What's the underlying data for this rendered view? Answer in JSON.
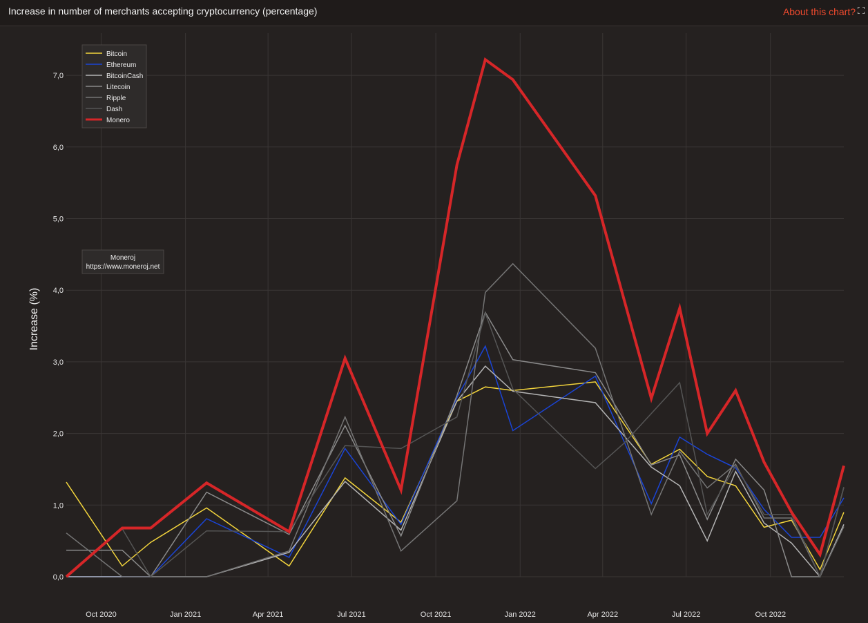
{
  "header": {
    "title": "Increase in number of merchants accepting cryptocurrency (percentage)",
    "about_label": "About this chart?",
    "expand_icon": "expand-icon"
  },
  "watermark": {
    "name": "Moneroj",
    "url": "https://www.moneroj.net"
  },
  "chart_data": {
    "type": "line",
    "ylabel": "Increase (%)",
    "ylim": [
      0,
      7.5
    ],
    "yticks": [
      0,
      1,
      2,
      3,
      4,
      5,
      6,
      7
    ],
    "ytick_labels": [
      "0,0",
      "1,0",
      "2,0",
      "3,0",
      "4,0",
      "5,0",
      "6,0",
      "7,0"
    ],
    "xlim": [
      "2020-08-24",
      "2022-12-20"
    ],
    "xticks": [
      "2020-10-01",
      "2021-01-01",
      "2021-04-01",
      "2021-07-01",
      "2021-10-01",
      "2022-01-01",
      "2022-04-01",
      "2022-07-01",
      "2022-10-01"
    ],
    "xtick_labels": [
      "Oct 2020",
      "Jan 2021",
      "Apr 2021",
      "Jul 2021",
      "Oct 2021",
      "Jan 2022",
      "Apr 2022",
      "Jul 2022",
      "Oct 2022"
    ],
    "grid": true,
    "legend_position": "top-left",
    "x": [
      "2020-08-24",
      "2020-09-24",
      "2020-10-24",
      "2020-11-24",
      "2020-12-24",
      "2021-01-24",
      "2021-02-24",
      "2021-03-24",
      "2021-04-24",
      "2021-05-24",
      "2021-06-24",
      "2021-07-24",
      "2021-08-24",
      "2021-09-24",
      "2021-10-24",
      "2021-11-24",
      "2021-12-24",
      "2022-01-24",
      "2022-02-24",
      "2022-03-24",
      "2022-04-24",
      "2022-05-24",
      "2022-06-24",
      "2022-07-24",
      "2022-08-24",
      "2022-09-24",
      "2022-10-24",
      "2022-11-24",
      "2022-12-20"
    ],
    "series": [
      {
        "name": "Bitcoin",
        "color": "#f2d43c",
        "width": 1.5,
        "values": [
          1.32,
          null,
          0.15,
          0.48,
          null,
          0.96,
          null,
          null,
          0.15,
          null,
          1.38,
          null,
          0.76,
          null,
          2.45,
          2.65,
          2.6,
          null,
          null,
          2.72,
          null,
          1.57,
          1.78,
          1.4,
          1.27,
          0.69,
          0.79,
          0.1,
          0.9
        ]
      },
      {
        "name": "Ethereum",
        "color": "#1a44d6",
        "width": 1.5,
        "values": [
          0.0,
          null,
          0.0,
          0.0,
          null,
          0.81,
          null,
          null,
          0.27,
          null,
          1.79,
          null,
          0.73,
          null,
          2.5,
          3.22,
          2.04,
          null,
          null,
          2.8,
          null,
          1.02,
          1.95,
          1.71,
          1.52,
          0.94,
          0.55,
          0.55,
          1.1
        ]
      },
      {
        "name": "BitcoinCash",
        "color": "#b4b4b4",
        "width": 1.5,
        "values": [
          0.0,
          null,
          0.0,
          0.0,
          null,
          0.0,
          null,
          null,
          0.34,
          null,
          1.33,
          null,
          0.65,
          null,
          2.45,
          2.94,
          2.59,
          null,
          null,
          2.43,
          null,
          1.53,
          1.27,
          0.5,
          1.47,
          0.75,
          0.47,
          0.0,
          0.73
        ]
      },
      {
        "name": "Litecoin",
        "color": "#8a8a8a",
        "width": 1.5,
        "values": [
          0.37,
          null,
          0.37,
          0.0,
          null,
          1.18,
          null,
          null,
          0.59,
          null,
          2.11,
          null,
          0.57,
          null,
          2.53,
          3.69,
          3.03,
          null,
          null,
          2.85,
          null,
          1.56,
          1.7,
          0.8,
          1.64,
          1.21,
          0.0,
          0.0,
          1.25
        ]
      },
      {
        "name": "Ripple",
        "color": "#757575",
        "width": 1.5,
        "values": [
          0.61,
          null,
          0.0,
          0.0,
          null,
          0.0,
          null,
          null,
          0.36,
          null,
          2.23,
          null,
          0.36,
          null,
          1.06,
          3.97,
          4.37,
          null,
          null,
          3.19,
          null,
          0.87,
          1.75,
          1.24,
          1.57,
          0.82,
          0.82,
          0.0,
          0.7
        ]
      },
      {
        "name": "Dash",
        "color": "#555555",
        "width": 1.5,
        "values": [
          0.0,
          null,
          0.67,
          0.0,
          null,
          0.64,
          null,
          null,
          0.63,
          null,
          1.83,
          null,
          1.79,
          null,
          2.23,
          3.68,
          2.62,
          null,
          null,
          1.51,
          1.86,
          null,
          2.71,
          0.87,
          1.55,
          0.87,
          0.87,
          0.0,
          1.25
        ]
      },
      {
        "name": "Monero",
        "color": "#d62628",
        "width": 4,
        "values": [
          0.0,
          null,
          0.68,
          0.68,
          null,
          1.31,
          null,
          null,
          0.63,
          null,
          3.05,
          null,
          1.21,
          null,
          5.75,
          7.22,
          6.94,
          null,
          null,
          5.32,
          null,
          2.49,
          3.75,
          2.0,
          2.6,
          1.6,
          0.9,
          0.31,
          1.55
        ]
      }
    ]
  }
}
